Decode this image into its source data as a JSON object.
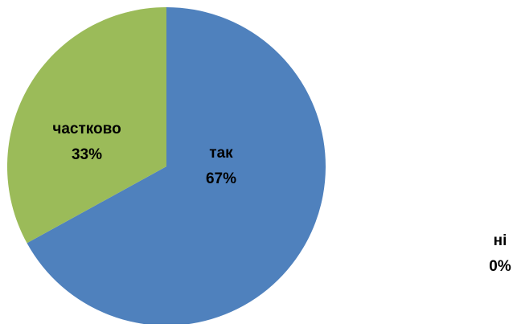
{
  "chart_data": {
    "type": "pie",
    "title": "",
    "categories": [
      "так",
      "ні",
      "частково"
    ],
    "values": [
      67,
      0,
      33
    ],
    "value_labels": [
      "67%",
      "0%",
      "33%"
    ],
    "colors": [
      "#4F81BD",
      "#C0504D",
      "#9BBB59"
    ],
    "start_angle_deg": 0,
    "direction": "clockwise",
    "legend": "none",
    "data_labels": "category and percent"
  }
}
